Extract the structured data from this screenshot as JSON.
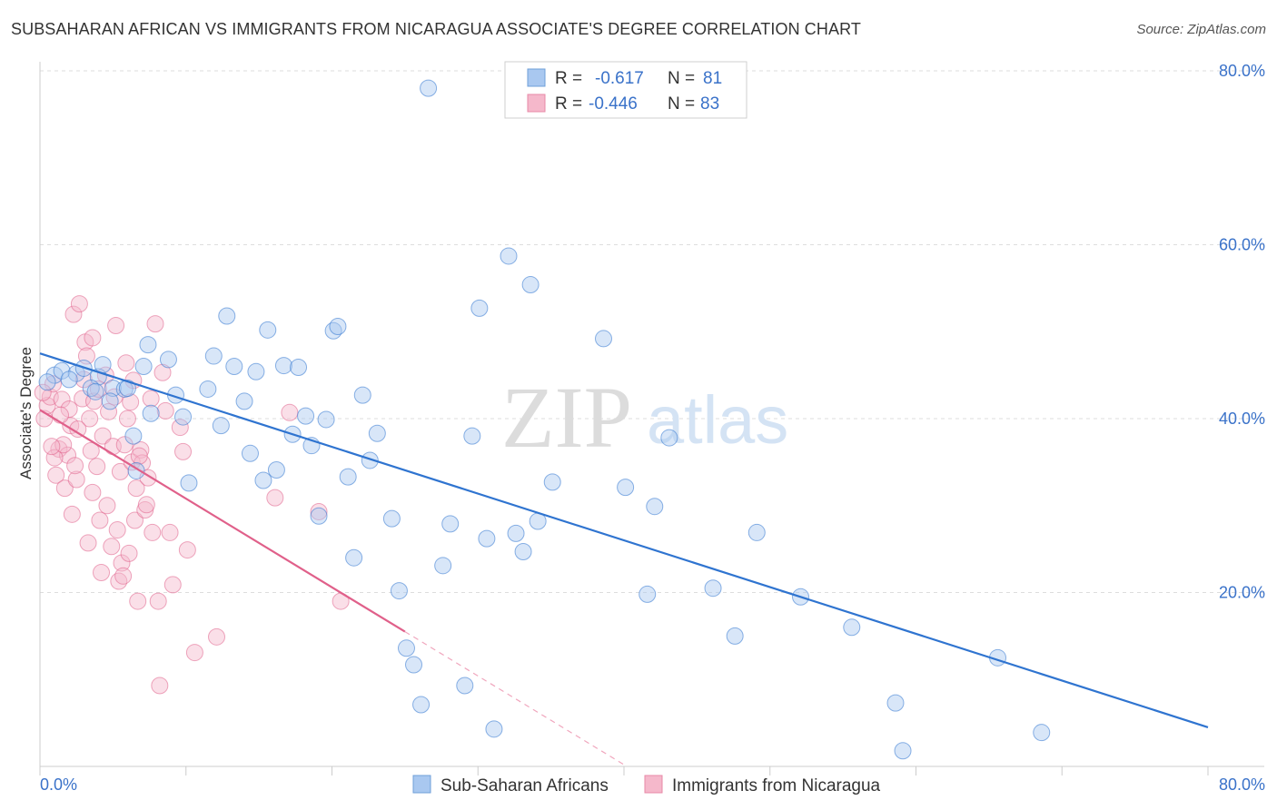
{
  "title": "SUBSAHARAN AFRICAN VS IMMIGRANTS FROM NICARAGUA ASSOCIATE'S DEGREE CORRELATION CHART",
  "source": "Source: ZipAtlas.com",
  "watermark": {
    "zip": "ZIP",
    "atlas": "atlas"
  },
  "legend_top": [
    {
      "r_label": "R =",
      "r_value": "-0.617",
      "n_label": "N =",
      "n_value": "81",
      "color": "#a9c8f0"
    },
    {
      "r_label": "R =",
      "r_value": "-0.446",
      "n_label": "N =",
      "n_value": "83",
      "color": "#f5b8cb"
    }
  ],
  "chart_data": {
    "type": "scatter",
    "title": "SUBSAHARAN AFRICAN VS IMMIGRANTS FROM NICARAGUA ASSOCIATE'S DEGREE CORRELATION CHART",
    "xlabel": "",
    "ylabel": "Associate's Degree",
    "xlim": [
      0,
      80
    ],
    "ylim": [
      0,
      80
    ],
    "x_tick_labels": [
      "0.0%",
      "80.0%"
    ],
    "y_tick_labels": [
      "20.0%",
      "40.0%",
      "60.0%",
      "80.0%"
    ],
    "y_ticks": [
      20,
      40,
      60,
      80
    ],
    "grid": true,
    "legend_position": "top-center",
    "series": [
      {
        "name": "Sub-Saharan Africans",
        "color": "#a9c8f0",
        "line_color": "#2f74d0",
        "trend": {
          "x": [
            0,
            80
          ],
          "y": [
            47.5,
            4.5
          ]
        },
        "points": [
          [
            1.0,
            45.0
          ],
          [
            1.5,
            45.5
          ],
          [
            2.5,
            45.2
          ],
          [
            3.0,
            45.8
          ],
          [
            4.0,
            44.8
          ],
          [
            3.5,
            43.5
          ],
          [
            5.0,
            43.5
          ],
          [
            4.8,
            42.0
          ],
          [
            5.8,
            43.4
          ],
          [
            6.4,
            38.0
          ],
          [
            6.6,
            34.0
          ],
          [
            7.1,
            46.0
          ],
          [
            7.4,
            48.5
          ],
          [
            7.6,
            40.6
          ],
          [
            8.8,
            46.8
          ],
          [
            9.3,
            42.7
          ],
          [
            9.8,
            40.2
          ],
          [
            10.2,
            32.6
          ],
          [
            11.5,
            43.4
          ],
          [
            11.9,
            47.2
          ],
          [
            12.4,
            39.2
          ],
          [
            12.8,
            51.8
          ],
          [
            13.3,
            46.0
          ],
          [
            14.0,
            42.0
          ],
          [
            14.4,
            36.0
          ],
          [
            14.8,
            45.4
          ],
          [
            15.3,
            32.9
          ],
          [
            15.6,
            50.2
          ],
          [
            16.2,
            34.1
          ],
          [
            16.7,
            46.1
          ],
          [
            17.3,
            38.2
          ],
          [
            17.7,
            45.9
          ],
          [
            18.2,
            40.3
          ],
          [
            18.6,
            36.9
          ],
          [
            19.1,
            28.8
          ],
          [
            19.6,
            39.9
          ],
          [
            20.1,
            50.1
          ],
          [
            20.4,
            50.6
          ],
          [
            21.1,
            33.3
          ],
          [
            21.5,
            24.0
          ],
          [
            22.1,
            42.7
          ],
          [
            22.6,
            35.2
          ],
          [
            23.1,
            38.3
          ],
          [
            24.1,
            28.5
          ],
          [
            24.6,
            20.2
          ],
          [
            25.1,
            13.6
          ],
          [
            25.6,
            11.7
          ],
          [
            26.1,
            7.1
          ],
          [
            26.6,
            78.0
          ],
          [
            27.6,
            23.1
          ],
          [
            28.1,
            27.9
          ],
          [
            29.1,
            9.3
          ],
          [
            29.6,
            38.0
          ],
          [
            30.1,
            52.7
          ],
          [
            30.6,
            26.2
          ],
          [
            31.1,
            4.3
          ],
          [
            32.1,
            58.7
          ],
          [
            32.6,
            26.8
          ],
          [
            33.1,
            24.7
          ],
          [
            33.6,
            55.4
          ],
          [
            34.1,
            28.2
          ],
          [
            35.1,
            32.7
          ],
          [
            38.6,
            49.2
          ],
          [
            40.1,
            32.1
          ],
          [
            41.6,
            19.8
          ],
          [
            42.1,
            29.9
          ],
          [
            43.1,
            37.8
          ],
          [
            46.1,
            20.5
          ],
          [
            47.6,
            15.0
          ],
          [
            49.1,
            26.9
          ],
          [
            52.1,
            19.5
          ],
          [
            55.6,
            16.0
          ],
          [
            58.6,
            7.3
          ],
          [
            59.1,
            1.8
          ],
          [
            65.6,
            12.5
          ],
          [
            68.6,
            3.9
          ],
          [
            4.3,
            46.2
          ],
          [
            2.0,
            44.5
          ],
          [
            0.5,
            44.2
          ],
          [
            3.8,
            43.1
          ],
          [
            6.0,
            43.5
          ]
        ]
      },
      {
        "name": "Immigrants from Nicaragua",
        "color": "#f5b8cb",
        "line_color": "#e0608a",
        "trend": {
          "x": [
            0,
            25
          ],
          "y": [
            41.0,
            15.5
          ]
        },
        "trend_dashed": {
          "x": [
            25,
            40.2
          ],
          "y": [
            15.5,
            0
          ]
        },
        "points": [
          [
            0.3,
            40.0
          ],
          [
            0.5,
            41.5
          ],
          [
            0.7,
            42.5
          ],
          [
            0.9,
            44.0
          ],
          [
            1.1,
            33.5
          ],
          [
            1.3,
            36.5
          ],
          [
            1.5,
            42.2
          ],
          [
            1.7,
            32.0
          ],
          [
            1.9,
            35.8
          ],
          [
            2.1,
            39.2
          ],
          [
            2.2,
            29.0
          ],
          [
            2.3,
            52.0
          ],
          [
            2.5,
            33.0
          ],
          [
            2.7,
            53.2
          ],
          [
            2.9,
            42.3
          ],
          [
            3.0,
            44.5
          ],
          [
            3.1,
            48.8
          ],
          [
            3.3,
            25.7
          ],
          [
            3.4,
            40.0
          ],
          [
            3.6,
            49.3
          ],
          [
            3.7,
            42.0
          ],
          [
            3.9,
            34.5
          ],
          [
            4.1,
            28.3
          ],
          [
            4.2,
            22.3
          ],
          [
            4.3,
            38.0
          ],
          [
            4.5,
            45.0
          ],
          [
            4.7,
            40.8
          ],
          [
            4.9,
            25.3
          ],
          [
            5.0,
            36.8
          ],
          [
            5.1,
            42.5
          ],
          [
            5.2,
            50.7
          ],
          [
            5.4,
            21.3
          ],
          [
            5.5,
            33.9
          ],
          [
            5.6,
            23.4
          ],
          [
            5.8,
            37.0
          ],
          [
            5.9,
            46.4
          ],
          [
            6.1,
            24.5
          ],
          [
            6.2,
            41.9
          ],
          [
            6.3,
            35.0
          ],
          [
            6.5,
            28.3
          ],
          [
            6.6,
            32.0
          ],
          [
            6.7,
            19.0
          ],
          [
            6.9,
            36.4
          ],
          [
            7.0,
            34.9
          ],
          [
            7.2,
            29.5
          ],
          [
            7.3,
            30.1
          ],
          [
            7.6,
            42.3
          ],
          [
            7.7,
            26.9
          ],
          [
            7.9,
            50.9
          ],
          [
            8.1,
            19.0
          ],
          [
            8.2,
            9.3
          ],
          [
            8.6,
            40.9
          ],
          [
            8.9,
            26.9
          ],
          [
            9.1,
            20.9
          ],
          [
            9.6,
            39.0
          ],
          [
            10.1,
            24.9
          ],
          [
            10.6,
            13.1
          ],
          [
            12.1,
            14.9
          ],
          [
            16.1,
            30.9
          ],
          [
            17.1,
            40.7
          ],
          [
            19.1,
            29.3
          ],
          [
            20.6,
            19.0
          ],
          [
            0.2,
            43.0
          ],
          [
            1.0,
            35.5
          ],
          [
            1.6,
            37.0
          ],
          [
            2.0,
            41.1
          ],
          [
            2.6,
            38.8
          ],
          [
            3.2,
            47.2
          ],
          [
            3.5,
            36.3
          ],
          [
            4.0,
            43.4
          ],
          [
            4.6,
            30.0
          ],
          [
            5.3,
            27.2
          ],
          [
            6.0,
            40.0
          ],
          [
            6.4,
            44.4
          ],
          [
            6.8,
            35.7
          ],
          [
            7.4,
            33.2
          ],
          [
            8.4,
            45.3
          ],
          [
            9.8,
            36.2
          ],
          [
            1.4,
            40.4
          ],
          [
            0.8,
            36.8
          ],
          [
            2.4,
            34.6
          ],
          [
            3.6,
            31.5
          ],
          [
            5.7,
            21.9
          ]
        ]
      }
    ]
  },
  "bottom_legend": [
    {
      "label": "Sub-Saharan Africans",
      "color": "#a9c8f0"
    },
    {
      "label": "Immigrants from Nicaragua",
      "color": "#f5b8cb"
    }
  ]
}
